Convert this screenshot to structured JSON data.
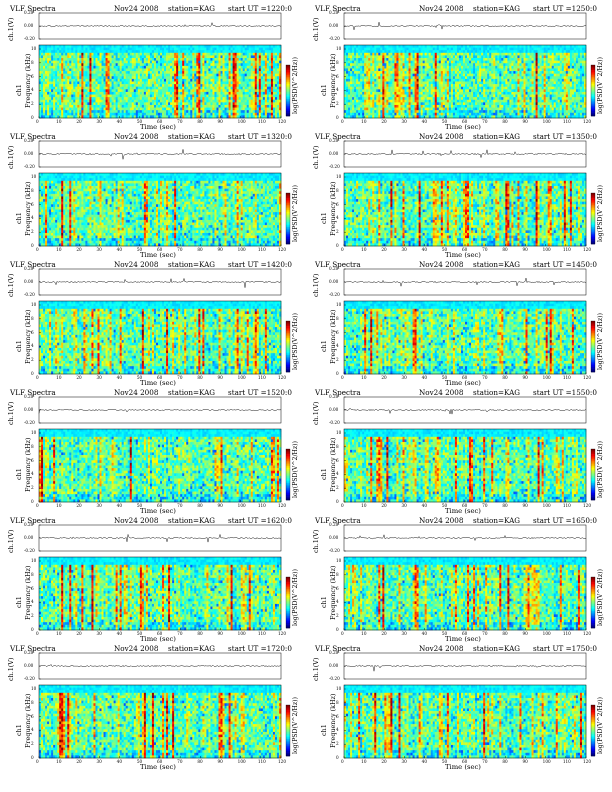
{
  "page": {
    "title": "VLF Spectra",
    "date": "Nov24 2008",
    "station": "station=KAG",
    "start_prefix": "start  UT",
    "xlabel": "Time  (sec)",
    "ylabel_freq": "Frequency  (kHz)",
    "ylabel_ch": "ch1",
    "ylabel_amp": "ch.1(V)",
    "cbar_label": "log(PSD(V^2/Hz))",
    "x_ticks": [
      "0",
      "10",
      "20",
      "30",
      "40",
      "50",
      "60",
      "70",
      "80",
      "90",
      "100",
      "110",
      "120"
    ],
    "y_ticks": [
      "0",
      "2",
      "4",
      "6",
      "8",
      "10"
    ],
    "amp_ticks": [
      "0.20",
      "0.00",
      "-0.20"
    ]
  },
  "chart_data": [
    {
      "type": "heatmap",
      "title": "VLF Spectra",
      "date": "Nov24 2008",
      "station": "station=KAG",
      "start_ut": "=1220:0",
      "xlabel": "Time  (sec)",
      "ylabel": "Frequency  (kHz)",
      "xlim": [
        0,
        120
      ],
      "ylim": [
        0,
        10
      ],
      "trace_ylim": [
        -0.2,
        0.2
      ],
      "colorbar_label": "log(PSD(V^2/Hz))"
    },
    {
      "type": "heatmap",
      "title": "VLF Spectra",
      "date": "Nov24 2008",
      "station": "station=KAG",
      "start_ut": "=1250:0",
      "xlabel": "Time  (sec)",
      "ylabel": "Frequency  (kHz)",
      "xlim": [
        0,
        120
      ],
      "ylim": [
        0,
        10
      ],
      "trace_ylim": [
        -0.2,
        0.2
      ],
      "colorbar_label": "log(PSD(V^2/Hz))"
    },
    {
      "type": "heatmap",
      "title": "VLF Spectra",
      "date": "Nov24 2008",
      "station": "station=KAG",
      "start_ut": "=1320:0",
      "xlabel": "Time  (sec)",
      "ylabel": "Frequency  (kHz)",
      "xlim": [
        0,
        120
      ],
      "ylim": [
        0,
        10
      ],
      "trace_ylim": [
        -0.2,
        0.2
      ],
      "colorbar_label": "log(PSD(V^2/Hz))"
    },
    {
      "type": "heatmap",
      "title": "VLF Spectra",
      "date": "Nov24 2008",
      "station": "station=KAG",
      "start_ut": "=1350:0",
      "xlabel": "Time  (sec)",
      "ylabel": "Frequency  (kHz)",
      "xlim": [
        0,
        120
      ],
      "ylim": [
        0,
        10
      ],
      "trace_ylim": [
        -0.2,
        0.2
      ],
      "colorbar_label": "log(PSD(V^2/Hz))"
    },
    {
      "type": "heatmap",
      "title": "VLF Spectra",
      "date": "Nov24 2008",
      "station": "station=KAG",
      "start_ut": "=1420:0",
      "xlabel": "Time  (sec)",
      "ylabel": "Frequency  (kHz)",
      "xlim": [
        0,
        120
      ],
      "ylim": [
        0,
        10
      ],
      "trace_ylim": [
        -0.2,
        0.2
      ],
      "colorbar_label": "log(PSD(V^2/Hz))"
    },
    {
      "type": "heatmap",
      "title": "VLF Spectra",
      "date": "Nov24 2008",
      "station": "station=KAG",
      "start_ut": "=1450:0",
      "xlabel": "Time  (sec)",
      "ylabel": "Frequency  (kHz)",
      "xlim": [
        0,
        120
      ],
      "ylim": [
        0,
        10
      ],
      "trace_ylim": [
        -0.2,
        0.2
      ],
      "colorbar_label": "log(PSD(V^2/Hz))"
    },
    {
      "type": "heatmap",
      "title": "VLF Spectra",
      "date": "Nov24 2008",
      "station": "station=KAG",
      "start_ut": "=1520:0",
      "xlabel": "Time  (sec)",
      "ylabel": "Frequency  (kHz)",
      "xlim": [
        0,
        120
      ],
      "ylim": [
        0,
        10
      ],
      "trace_ylim": [
        -0.2,
        0.2
      ],
      "colorbar_label": "log(PSD(V^2/Hz))"
    },
    {
      "type": "heatmap",
      "title": "VLF Spectra",
      "date": "Nov24 2008",
      "station": "station=KAG",
      "start_ut": "=1550:0",
      "xlabel": "Time  (sec)",
      "ylabel": "Frequency  (kHz)",
      "xlim": [
        0,
        120
      ],
      "ylim": [
        0,
        10
      ],
      "trace_ylim": [
        -0.2,
        0.2
      ],
      "colorbar_label": "log(PSD(V^2/Hz))"
    },
    {
      "type": "heatmap",
      "title": "VLF Spectra",
      "date": "Nov24 2008",
      "station": "station=KAG",
      "start_ut": "=1620:0",
      "xlabel": "Time  (sec)",
      "ylabel": "Frequency  (kHz)",
      "xlim": [
        0,
        120
      ],
      "ylim": [
        0,
        10
      ],
      "trace_ylim": [
        -0.2,
        0.2
      ],
      "colorbar_label": "log(PSD(V^2/Hz))"
    },
    {
      "type": "heatmap",
      "title": "VLF Spectra",
      "date": "Nov24 2008",
      "station": "station=KAG",
      "start_ut": "=1650:0",
      "xlabel": "Time  (sec)",
      "ylabel": "Frequency  (kHz)",
      "xlim": [
        0,
        120
      ],
      "ylim": [
        0,
        10
      ],
      "trace_ylim": [
        -0.2,
        0.2
      ],
      "colorbar_label": "log(PSD(V^2/Hz))"
    },
    {
      "type": "heatmap",
      "title": "VLF Spectra",
      "date": "Nov24 2008",
      "station": "station=KAG",
      "start_ut": "=1720:0",
      "xlabel": "Time  (sec)",
      "ylabel": "Frequency  (kHz)",
      "xlim": [
        0,
        120
      ],
      "ylim": [
        0,
        10
      ],
      "trace_ylim": [
        -0.2,
        0.2
      ],
      "colorbar_label": "log(PSD(V^2/Hz))"
    },
    {
      "type": "heatmap",
      "title": "VLF Spectra",
      "date": "Nov24 2008",
      "station": "station=KAG",
      "start_ut": "=1750:0",
      "xlabel": "Time  (sec)",
      "ylabel": "Frequency  (kHz)",
      "xlim": [
        0,
        120
      ],
      "ylim": [
        0,
        10
      ],
      "trace_ylim": [
        -0.2,
        0.2
      ],
      "colorbar_label": "log(PSD(V^2/Hz))"
    }
  ]
}
